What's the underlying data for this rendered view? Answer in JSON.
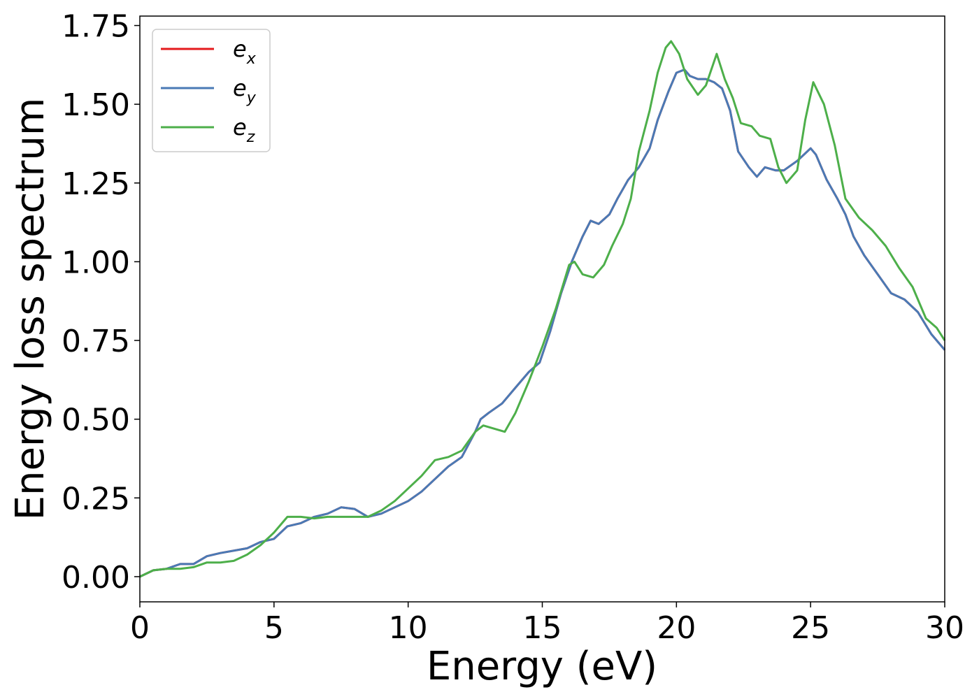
{
  "chart_data": {
    "type": "line",
    "xlabel": "Energy (eV)",
    "ylabel": "Energy loss spectrum",
    "xlim": [
      0,
      30
    ],
    "ylim": [
      -0.08,
      1.78
    ],
    "xticks": [
      0,
      5,
      10,
      15,
      20,
      25,
      30
    ],
    "xtick_labels": [
      "0",
      "5",
      "10",
      "15",
      "20",
      "25",
      "30"
    ],
    "yticks": [
      0,
      0.25,
      0.5,
      0.75,
      1.0,
      1.25,
      1.5,
      1.75
    ],
    "ytick_labels": [
      "0.00",
      "0.25",
      "0.50",
      "0.75",
      "1.00",
      "1.25",
      "1.50",
      "1.75"
    ],
    "grid": false,
    "legend_position": "top-left",
    "series": [
      {
        "name": "e",
        "subscript": "x",
        "color": "#e41a1c",
        "points": [
          [
            0,
            0
          ],
          [
            0.5,
            0.02
          ],
          [
            1,
            0.025
          ],
          [
            1.5,
            0.04
          ],
          [
            2,
            0.04
          ],
          [
            2.5,
            0.065
          ],
          [
            3,
            0.075
          ],
          [
            4,
            0.09
          ],
          [
            4.5,
            0.11
          ],
          [
            5,
            0.12
          ],
          [
            5.5,
            0.16
          ],
          [
            6,
            0.17
          ],
          [
            6.5,
            0.19
          ],
          [
            7,
            0.2
          ],
          [
            7.5,
            0.22
          ],
          [
            8,
            0.215
          ],
          [
            8.5,
            0.19
          ],
          [
            9,
            0.2
          ],
          [
            9.5,
            0.22
          ],
          [
            10,
            0.24
          ],
          [
            10.5,
            0.27
          ],
          [
            11,
            0.31
          ],
          [
            11.5,
            0.35
          ],
          [
            12,
            0.38
          ],
          [
            12.5,
            0.46
          ],
          [
            12.7,
            0.5
          ],
          [
            13,
            0.52
          ],
          [
            13.5,
            0.55
          ],
          [
            14,
            0.6
          ],
          [
            14.5,
            0.65
          ],
          [
            14.9,
            0.68
          ],
          [
            15.3,
            0.78
          ],
          [
            15.7,
            0.9
          ],
          [
            16.1,
            1.0
          ],
          [
            16.5,
            1.08
          ],
          [
            16.8,
            1.13
          ],
          [
            17.1,
            1.12
          ],
          [
            17.5,
            1.15
          ],
          [
            17.8,
            1.2
          ],
          [
            18.2,
            1.26
          ],
          [
            18.6,
            1.3
          ],
          [
            19,
            1.36
          ],
          [
            19.3,
            1.45
          ],
          [
            19.7,
            1.54
          ],
          [
            20,
            1.6
          ],
          [
            20.3,
            1.61
          ],
          [
            20.5,
            1.59
          ],
          [
            20.8,
            1.58
          ],
          [
            21.1,
            1.58
          ],
          [
            21.4,
            1.57
          ],
          [
            21.7,
            1.55
          ],
          [
            22,
            1.48
          ],
          [
            22.3,
            1.35
          ],
          [
            22.7,
            1.3
          ],
          [
            23,
            1.27
          ],
          [
            23.3,
            1.3
          ],
          [
            23.7,
            1.29
          ],
          [
            24,
            1.29
          ],
          [
            24.5,
            1.32
          ],
          [
            25,
            1.36
          ],
          [
            25.2,
            1.34
          ],
          [
            25.6,
            1.26
          ],
          [
            26,
            1.2
          ],
          [
            26.3,
            1.15
          ],
          [
            26.6,
            1.08
          ],
          [
            27,
            1.02
          ],
          [
            27.5,
            0.96
          ],
          [
            28,
            0.9
          ],
          [
            28.5,
            0.88
          ],
          [
            29,
            0.84
          ],
          [
            29.5,
            0.77
          ],
          [
            30,
            0.72
          ]
        ]
      },
      {
        "name": "e",
        "subscript": "y",
        "color": "#4a7ab5",
        "points": [
          [
            0,
            0
          ],
          [
            0.5,
            0.02
          ],
          [
            1,
            0.025
          ],
          [
            1.5,
            0.04
          ],
          [
            2,
            0.04
          ],
          [
            2.5,
            0.065
          ],
          [
            3,
            0.075
          ],
          [
            4,
            0.09
          ],
          [
            4.5,
            0.11
          ],
          [
            5,
            0.12
          ],
          [
            5.5,
            0.16
          ],
          [
            6,
            0.17
          ],
          [
            6.5,
            0.19
          ],
          [
            7,
            0.2
          ],
          [
            7.5,
            0.22
          ],
          [
            8,
            0.215
          ],
          [
            8.5,
            0.19
          ],
          [
            9,
            0.2
          ],
          [
            9.5,
            0.22
          ],
          [
            10,
            0.24
          ],
          [
            10.5,
            0.27
          ],
          [
            11,
            0.31
          ],
          [
            11.5,
            0.35
          ],
          [
            12,
            0.38
          ],
          [
            12.5,
            0.46
          ],
          [
            12.7,
            0.5
          ],
          [
            13,
            0.52
          ],
          [
            13.5,
            0.55
          ],
          [
            14,
            0.6
          ],
          [
            14.5,
            0.65
          ],
          [
            14.9,
            0.68
          ],
          [
            15.3,
            0.78
          ],
          [
            15.7,
            0.9
          ],
          [
            16.1,
            1.0
          ],
          [
            16.5,
            1.08
          ],
          [
            16.8,
            1.13
          ],
          [
            17.1,
            1.12
          ],
          [
            17.5,
            1.15
          ],
          [
            17.8,
            1.2
          ],
          [
            18.2,
            1.26
          ],
          [
            18.6,
            1.3
          ],
          [
            19,
            1.36
          ],
          [
            19.3,
            1.45
          ],
          [
            19.7,
            1.54
          ],
          [
            20,
            1.6
          ],
          [
            20.3,
            1.61
          ],
          [
            20.5,
            1.59
          ],
          [
            20.8,
            1.58
          ],
          [
            21.1,
            1.58
          ],
          [
            21.4,
            1.57
          ],
          [
            21.7,
            1.55
          ],
          [
            22,
            1.48
          ],
          [
            22.3,
            1.35
          ],
          [
            22.7,
            1.3
          ],
          [
            23,
            1.27
          ],
          [
            23.3,
            1.3
          ],
          [
            23.7,
            1.29
          ],
          [
            24,
            1.29
          ],
          [
            24.5,
            1.32
          ],
          [
            25,
            1.36
          ],
          [
            25.2,
            1.34
          ],
          [
            25.6,
            1.26
          ],
          [
            26,
            1.2
          ],
          [
            26.3,
            1.15
          ],
          [
            26.6,
            1.08
          ],
          [
            27,
            1.02
          ],
          [
            27.5,
            0.96
          ],
          [
            28,
            0.9
          ],
          [
            28.5,
            0.88
          ],
          [
            29,
            0.84
          ],
          [
            29.5,
            0.77
          ],
          [
            30,
            0.72
          ]
        ]
      },
      {
        "name": "e",
        "subscript": "z",
        "color": "#4daf4a",
        "points": [
          [
            0,
            0
          ],
          [
            0.5,
            0.02
          ],
          [
            1,
            0.025
          ],
          [
            1.5,
            0.025
          ],
          [
            2,
            0.03
          ],
          [
            2.5,
            0.045
          ],
          [
            3,
            0.045
          ],
          [
            3.5,
            0.05
          ],
          [
            4,
            0.07
          ],
          [
            4.5,
            0.1
          ],
          [
            5,
            0.14
          ],
          [
            5.5,
            0.19
          ],
          [
            6,
            0.19
          ],
          [
            6.5,
            0.185
          ],
          [
            7,
            0.19
          ],
          [
            7.5,
            0.19
          ],
          [
            8,
            0.19
          ],
          [
            8.5,
            0.19
          ],
          [
            9,
            0.21
          ],
          [
            9.5,
            0.24
          ],
          [
            10,
            0.28
          ],
          [
            10.5,
            0.32
          ],
          [
            11,
            0.37
          ],
          [
            11.5,
            0.38
          ],
          [
            12,
            0.4
          ],
          [
            12.5,
            0.46
          ],
          [
            12.8,
            0.48
          ],
          [
            13.2,
            0.47
          ],
          [
            13.6,
            0.46
          ],
          [
            14,
            0.52
          ],
          [
            14.5,
            0.62
          ],
          [
            15,
            0.73
          ],
          [
            15.5,
            0.85
          ],
          [
            16,
            0.99
          ],
          [
            16.2,
            1.0
          ],
          [
            16.5,
            0.96
          ],
          [
            16.9,
            0.95
          ],
          [
            17.3,
            0.99
          ],
          [
            17.6,
            1.05
          ],
          [
            18,
            1.12
          ],
          [
            18.3,
            1.2
          ],
          [
            18.6,
            1.35
          ],
          [
            19,
            1.48
          ],
          [
            19.3,
            1.6
          ],
          [
            19.6,
            1.68
          ],
          [
            19.8,
            1.7
          ],
          [
            20.1,
            1.66
          ],
          [
            20.4,
            1.58
          ],
          [
            20.8,
            1.53
          ],
          [
            21.1,
            1.56
          ],
          [
            21.5,
            1.66
          ],
          [
            21.8,
            1.58
          ],
          [
            22.1,
            1.52
          ],
          [
            22.4,
            1.44
          ],
          [
            22.8,
            1.43
          ],
          [
            23.1,
            1.4
          ],
          [
            23.5,
            1.39
          ],
          [
            23.8,
            1.3
          ],
          [
            24.1,
            1.25
          ],
          [
            24.5,
            1.29
          ],
          [
            24.8,
            1.45
          ],
          [
            25.1,
            1.57
          ],
          [
            25.5,
            1.5
          ],
          [
            25.9,
            1.37
          ],
          [
            26.3,
            1.2
          ],
          [
            26.8,
            1.14
          ],
          [
            27.3,
            1.1
          ],
          [
            27.8,
            1.05
          ],
          [
            28.3,
            0.98
          ],
          [
            28.8,
            0.92
          ],
          [
            29.3,
            0.82
          ],
          [
            29.7,
            0.79
          ],
          [
            30,
            0.75
          ]
        ]
      }
    ]
  }
}
